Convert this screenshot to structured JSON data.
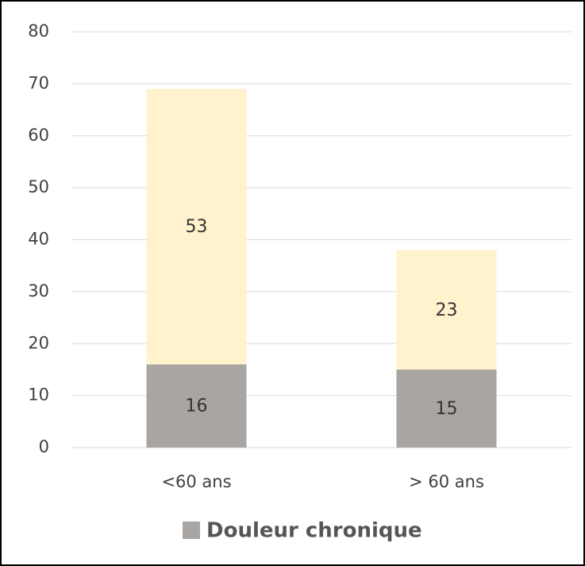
{
  "chart_data": {
    "type": "stacked_bar",
    "categories": [
      "<60 ans",
      "> 60 ans"
    ],
    "series": [
      {
        "name": "Douleur chronique",
        "color": "#a8a5a2",
        "values": [
          16,
          15
        ]
      },
      {
        "color": "#fff2cc",
        "values": [
          53,
          23
        ]
      }
    ],
    "ylim": [
      0,
      80
    ],
    "yticks": [
      0,
      10,
      20,
      30,
      40,
      50,
      60,
      70,
      80
    ],
    "grid": true,
    "legend": "bottom"
  }
}
